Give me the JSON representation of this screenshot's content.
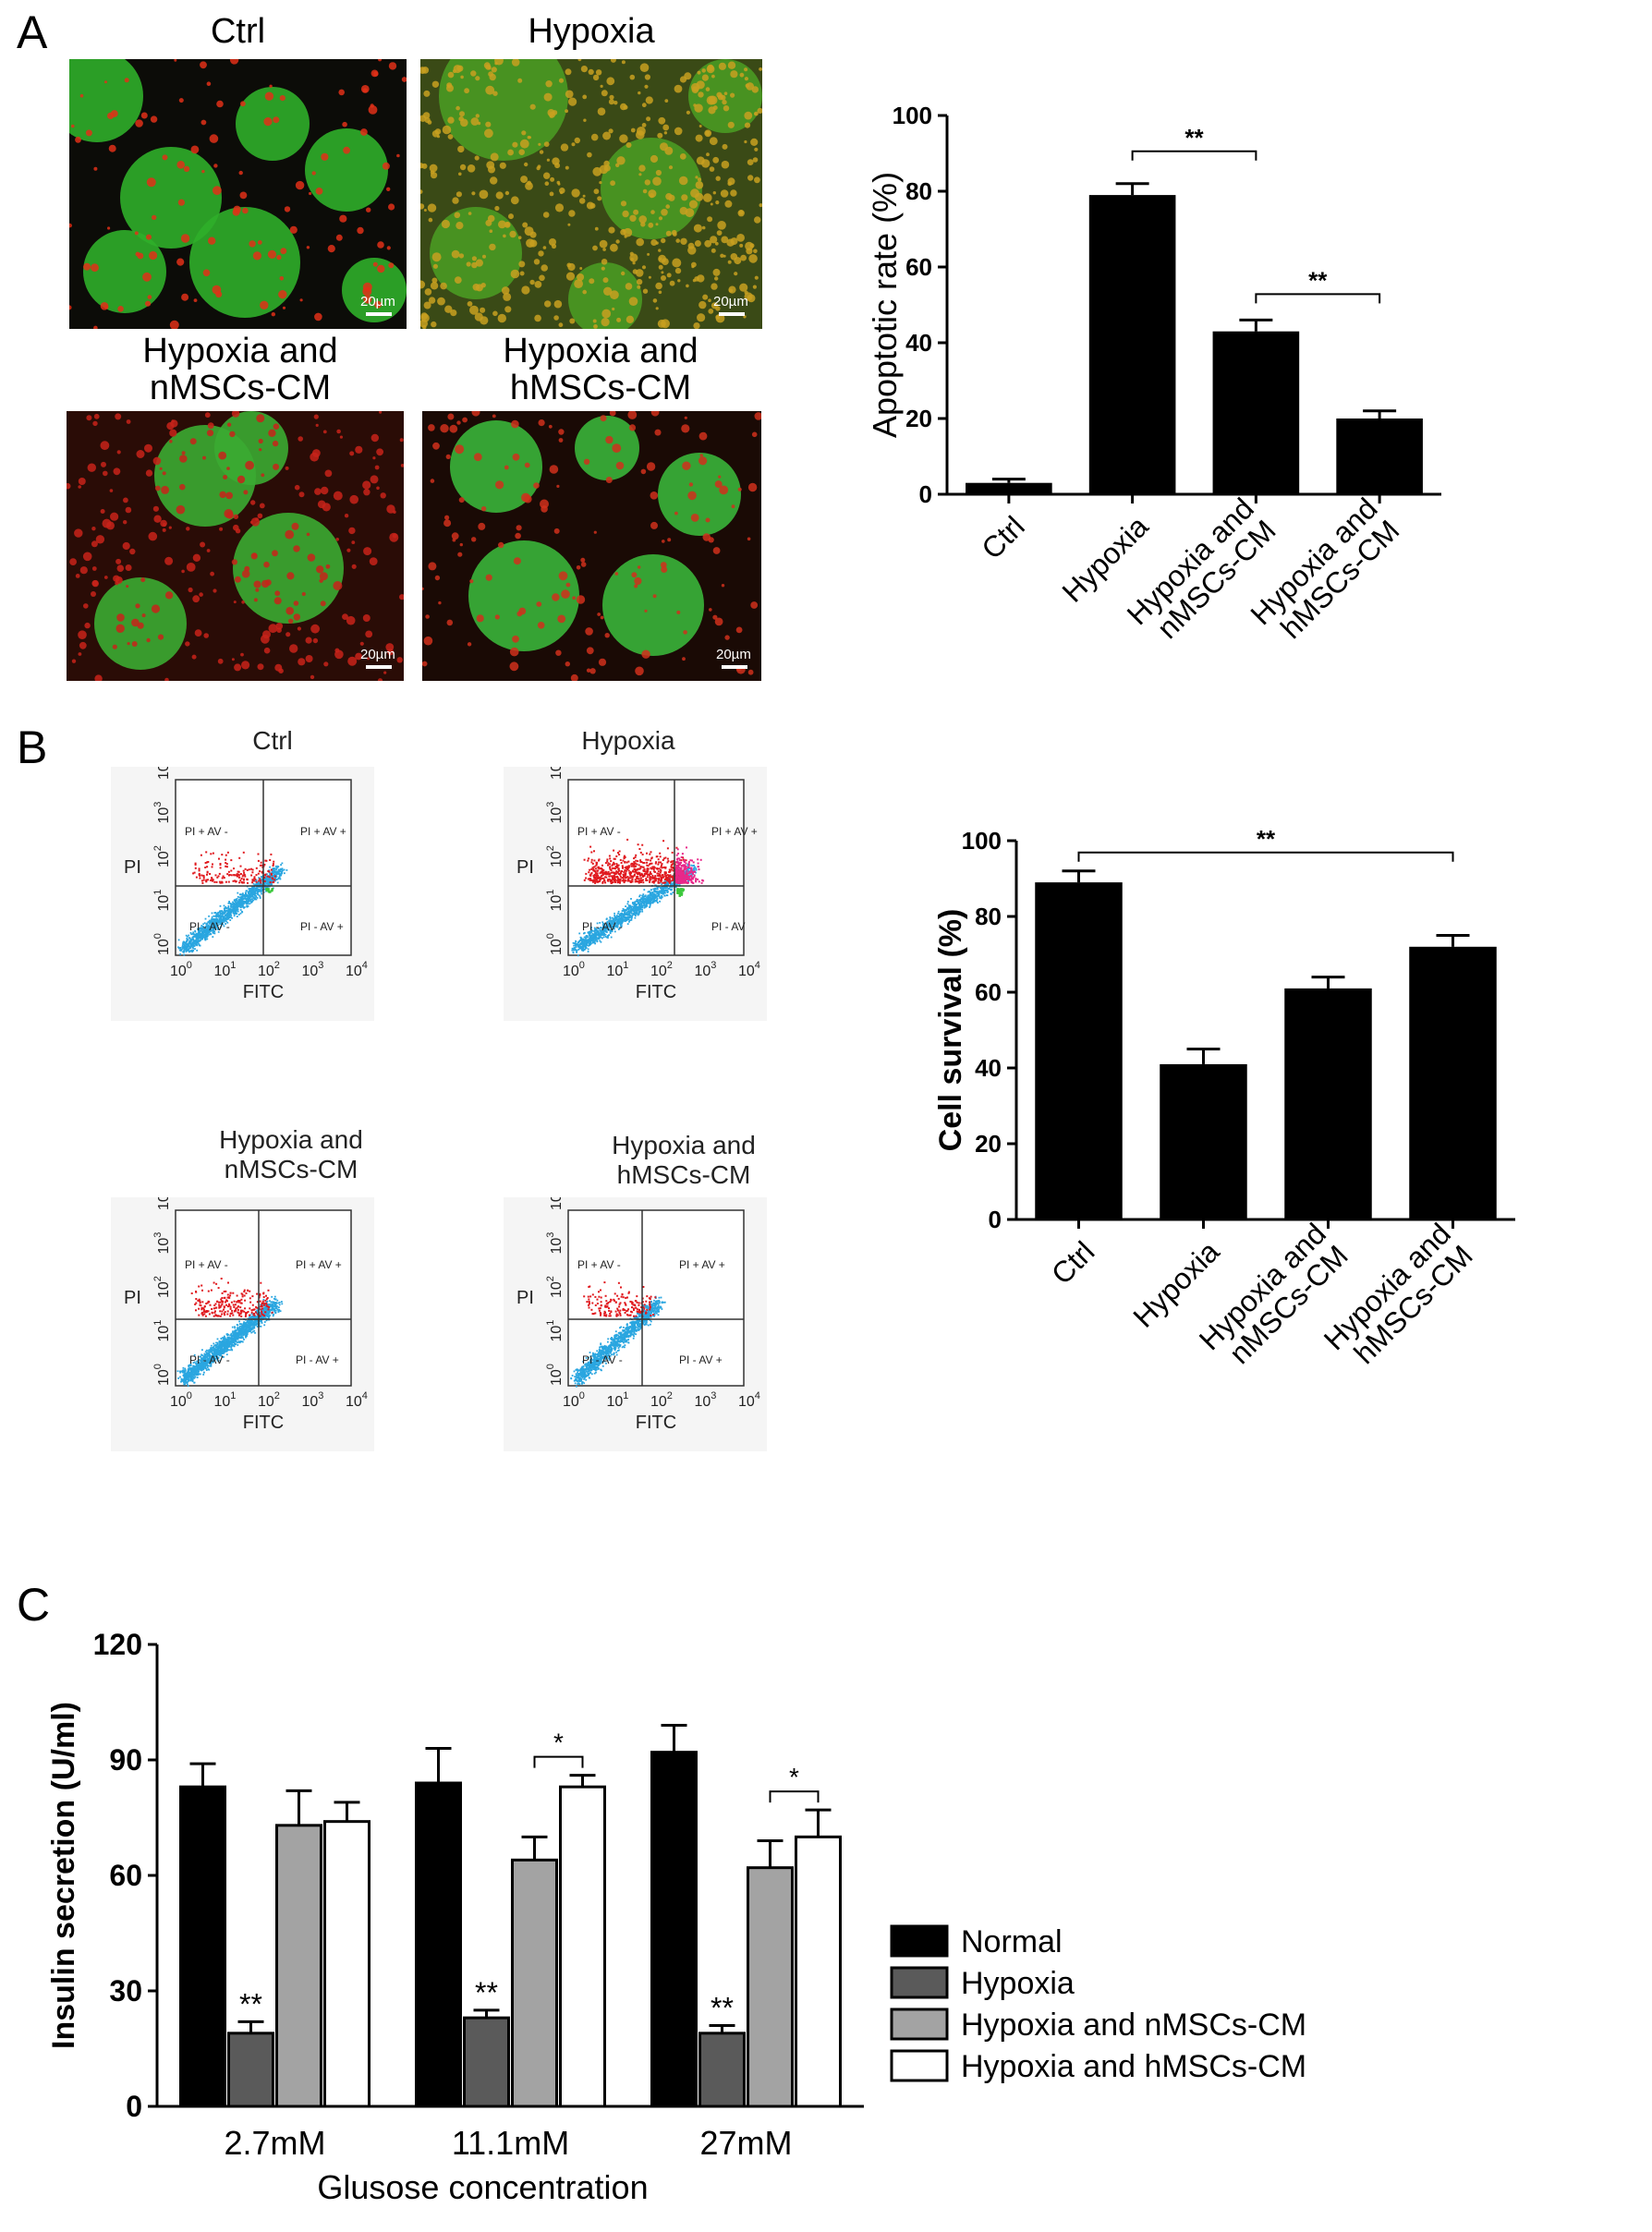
{
  "panel_labels": {
    "a": "A",
    "b": "B",
    "c": "C"
  },
  "micrographs": [
    {
      "title": "Ctrl",
      "scale": "20µm",
      "bg": "#0c0c08"
    },
    {
      "title": "Hypoxia",
      "scale": "20µm",
      "bg": "#3a4a16"
    },
    {
      "title": "Hypoxia and nMSCs-CM",
      "scale": "20µm",
      "bg": "#2a0c06"
    },
    {
      "title": "Hypoxia and hMSCs-CM",
      "scale": "20µm",
      "bg": "#1a0a05"
    }
  ],
  "flow_plots": [
    {
      "title": "Ctrl",
      "q_ul": "PI + AV -",
      "q_ur": "PI + AV +",
      "q_ll": "PI - AV -",
      "q_lr": "PI - AV +"
    },
    {
      "title": "Hypoxia",
      "q_ul": "PI + AV -",
      "q_ur": "PI + AV +",
      "q_ll": "PI - AV -",
      "q_lr": "PI - AV"
    },
    {
      "title": "Hypoxia and nMSCs-CM",
      "q_ul": "PI + AV -",
      "q_ur": "PI + AV +",
      "q_ll": "PI - AV -",
      "q_lr": "PI - AV +"
    },
    {
      "title": "Hypoxia and hMSCs-CM",
      "q_ul": "PI + AV -",
      "q_ur": "PI + AV +",
      "q_ll": "PI - AV -",
      "q_lr": "PI - AV +"
    }
  ],
  "flow_axes": {
    "xlabel": "FITC",
    "ylabel": "PI",
    "ticks": [
      "0",
      "1",
      "2",
      "3",
      "4"
    ]
  },
  "colors": {
    "bar_black": "#000000",
    "bar_dark_gray": "#5a5a5a",
    "bar_light_gray": "#a3a3a3",
    "bar_white": "#ffffff",
    "flow_live": "#2aa6e0",
    "flow_pi": "#e0191e",
    "flow_double": "#e8288a",
    "flow_av": "#3cc83c"
  },
  "chart_data": [
    {
      "type": "bar",
      "title": "",
      "xlabel": "",
      "ylabel": "Apoptotic rate (%)",
      "categories": [
        "Ctrl",
        "Hypoxia",
        "Hypoxia and nMSCs-CM",
        "Hypoxia and hMSCs-CM"
      ],
      "values": [
        3,
        79,
        43,
        20
      ],
      "errors": [
        1,
        3,
        3,
        2
      ],
      "ylim": [
        0,
        100
      ],
      "yticks": [
        0,
        20,
        40,
        60,
        80,
        100
      ],
      "significance": [
        {
          "from": 1,
          "to": 2,
          "label": "**"
        },
        {
          "from": 2,
          "to": 3,
          "label": "**"
        }
      ]
    },
    {
      "type": "bar",
      "title": "",
      "xlabel": "",
      "ylabel": "Cell survival (%)",
      "categories": [
        "Ctrl",
        "Hypoxia",
        "Hypoxia and nMSCs-CM",
        "Hypoxia and hMSCs-CM"
      ],
      "values": [
        89,
        41,
        61,
        72
      ],
      "errors": [
        3,
        4,
        3,
        3
      ],
      "ylim": [
        0,
        100
      ],
      "yticks": [
        0,
        20,
        40,
        60,
        80,
        100
      ],
      "significance": [
        {
          "from": 0,
          "to": 3,
          "label": "**"
        }
      ]
    },
    {
      "type": "bar",
      "title": "",
      "xlabel": "Glusose concentration",
      "ylabel": "Insulin secretion (U/ml)",
      "categories": [
        "2.7mM",
        "11.1mM",
        "27mM"
      ],
      "series": [
        {
          "name": "Normal",
          "values": [
            83,
            84,
            92
          ],
          "errors": [
            6,
            9,
            7
          ]
        },
        {
          "name": "Hypoxia",
          "values": [
            19,
            23,
            19
          ],
          "errors": [
            3,
            2,
            2
          ]
        },
        {
          "name": "Hypoxia and nMSCs-CM",
          "values": [
            73,
            64,
            62
          ],
          "errors": [
            9,
            6,
            7
          ]
        },
        {
          "name": "Hypoxia and hMSCs-CM",
          "values": [
            74,
            83,
            70
          ],
          "errors": [
            5,
            3,
            7
          ]
        }
      ],
      "ylim": [
        0,
        120
      ],
      "yticks": [
        0,
        30,
        60,
        90,
        120
      ],
      "star_labels": [
        "**",
        "**",
        "**"
      ],
      "significance": [
        {
          "group": 1,
          "label": "*"
        },
        {
          "group": 2,
          "label": "*"
        }
      ],
      "legend_position": "right"
    }
  ]
}
